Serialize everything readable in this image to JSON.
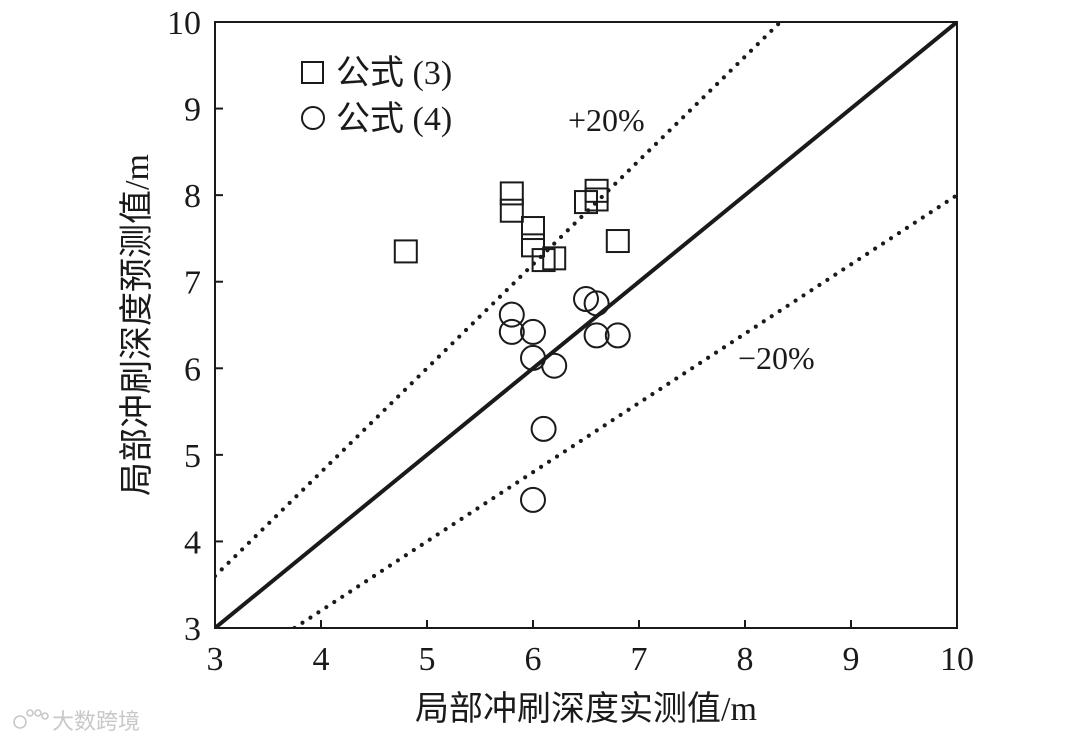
{
  "chart_data": {
    "type": "scatter",
    "xlabel": "局部冲刷深度实测值/m",
    "ylabel": "局部冲刷深度预测值/m",
    "xlim": [
      3,
      10
    ],
    "ylim": [
      3,
      10
    ],
    "xticks": [
      "3",
      "4",
      "5",
      "6",
      "7",
      "8",
      "9",
      "10"
    ],
    "yticks": [
      "3",
      "4",
      "5",
      "6",
      "7",
      "8",
      "9",
      "10"
    ],
    "grid": false,
    "legend_position": "top-left",
    "series": [
      {
        "name": "公式 (3)",
        "marker": "square",
        "points": [
          {
            "x": 4.8,
            "y": 7.35
          },
          {
            "x": 5.8,
            "y": 8.02
          },
          {
            "x": 5.8,
            "y": 7.82
          },
          {
            "x": 6.0,
            "y": 7.62
          },
          {
            "x": 6.0,
            "y": 7.42
          },
          {
            "x": 6.1,
            "y": 7.25
          },
          {
            "x": 6.2,
            "y": 7.27
          },
          {
            "x": 6.5,
            "y": 7.92
          },
          {
            "x": 6.6,
            "y": 8.05
          },
          {
            "x": 6.6,
            "y": 7.95
          },
          {
            "x": 6.8,
            "y": 7.47
          }
        ]
      },
      {
        "name": "公式 (4)",
        "marker": "circle",
        "points": [
          {
            "x": 5.8,
            "y": 6.62
          },
          {
            "x": 5.8,
            "y": 6.42
          },
          {
            "x": 6.0,
            "y": 6.42
          },
          {
            "x": 6.0,
            "y": 6.12
          },
          {
            "x": 6.2,
            "y": 6.03
          },
          {
            "x": 6.5,
            "y": 6.8
          },
          {
            "x": 6.6,
            "y": 6.75
          },
          {
            "x": 6.6,
            "y": 6.38
          },
          {
            "x": 6.8,
            "y": 6.38
          },
          {
            "x": 6.1,
            "y": 5.3
          },
          {
            "x": 6.0,
            "y": 4.48
          }
        ]
      }
    ],
    "reference_lines": [
      {
        "label": "",
        "style": "solid",
        "slope": 1.0
      },
      {
        "label": "+20%",
        "style": "dotted",
        "slope": 1.2
      },
      {
        "label": "−20%",
        "style": "dotted",
        "slope": 0.8
      }
    ]
  },
  "watermark": {
    "text": "大数跨境",
    "icon": "paw-logo-icon"
  }
}
